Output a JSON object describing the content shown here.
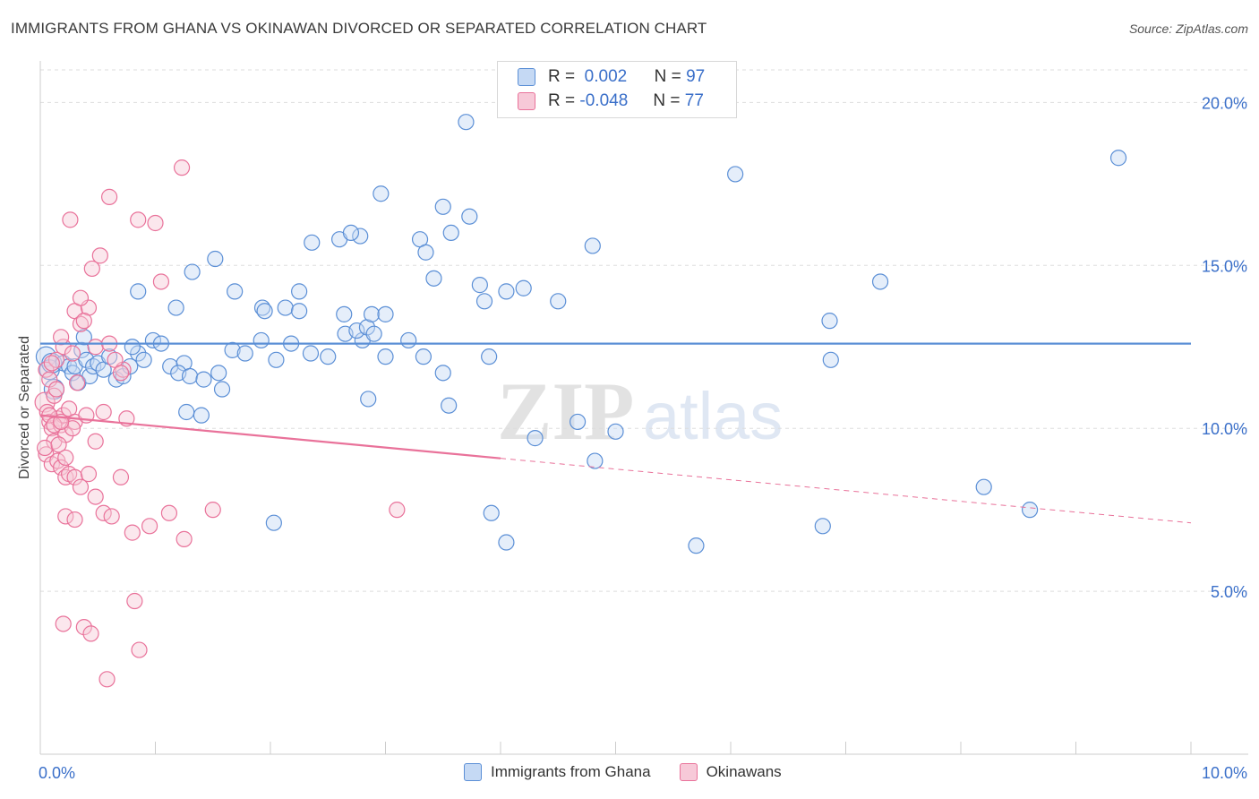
{
  "header": {
    "title": "IMMIGRANTS FROM GHANA VS OKINAWAN DIVORCED OR SEPARATED CORRELATION CHART",
    "source": "Source: ZipAtlas.com"
  },
  "watermark": {
    "zip": "ZIP",
    "atlas": "atlas"
  },
  "legend_top": {
    "rows": [
      {
        "r_label": "R =",
        "r_value": "0.002",
        "n_label": "N =",
        "n_value": "97"
      },
      {
        "r_label": "R =",
        "r_value": "-0.048",
        "n_label": "N =",
        "n_value": "77"
      }
    ]
  },
  "legend_bottom": {
    "items": [
      "Immigrants from Ghana",
      "Okinawans"
    ]
  },
  "colors": {
    "blue": "#5b8fd6",
    "blue_fill": "#c5d9f4",
    "pink": "#e9729a",
    "pink_fill": "#f7c9d8",
    "axis_text": "#3a6fc9",
    "grid": "#dddddd"
  },
  "chart_data": {
    "type": "scatter",
    "title": "IMMIGRANTS FROM GHANA VS OKINAWAN DIVORCED OR SEPARATED CORRELATION CHART",
    "xlabel": "",
    "ylabel": "Divorced or Separated",
    "xlim": [
      0,
      10
    ],
    "ylim": [
      0,
      21
    ],
    "x_tick_labels": [
      "0.0%",
      "10.0%"
    ],
    "y_ticks": [
      5,
      10,
      15,
      20
    ],
    "y_tick_labels": [
      "5.0%",
      "10.0%",
      "15.0%",
      "20.0%"
    ],
    "grid": true,
    "legend": "top-center",
    "series": [
      {
        "name": "Immigrants from Ghana",
        "r": 0.002,
        "n": 97,
        "trend": {
          "x": [
            0,
            10
          ],
          "y": [
            12.6,
            12.6
          ],
          "solid_until": 10
        },
        "points": [
          [
            0.05,
            12.2
          ],
          [
            0.08,
            11.8
          ],
          [
            0.1,
            12.0
          ],
          [
            0.12,
            11.2
          ],
          [
            0.2,
            12.0
          ],
          [
            0.25,
            11.9
          ],
          [
            0.28,
            11.7
          ],
          [
            0.33,
            11.4
          ],
          [
            0.3,
            11.9
          ],
          [
            0.36,
            12.4
          ],
          [
            0.4,
            12.1
          ],
          [
            0.43,
            11.6
          ],
          [
            0.46,
            11.9
          ],
          [
            0.5,
            12.0
          ],
          [
            0.55,
            11.8
          ],
          [
            0.6,
            12.2
          ],
          [
            0.66,
            11.5
          ],
          [
            0.72,
            11.6
          ],
          [
            0.78,
            11.9
          ],
          [
            0.85,
            12.3
          ],
          [
            0.9,
            12.1
          ],
          [
            0.98,
            12.7
          ],
          [
            1.05,
            12.6
          ],
          [
            1.13,
            11.9
          ],
          [
            1.25,
            12.0
          ],
          [
            1.2,
            11.7
          ],
          [
            1.3,
            11.6
          ],
          [
            1.42,
            11.5
          ],
          [
            1.55,
            11.7
          ],
          [
            1.67,
            12.4
          ],
          [
            1.78,
            12.3
          ],
          [
            1.92,
            12.7
          ],
          [
            2.05,
            12.1
          ],
          [
            2.18,
            12.6
          ],
          [
            2.35,
            12.3
          ],
          [
            2.5,
            12.2
          ],
          [
            2.65,
            12.9
          ],
          [
            2.8,
            12.7
          ],
          [
            3.0,
            12.2
          ],
          [
            3.2,
            12.7
          ],
          [
            0.8,
            12.5
          ],
          [
            0.38,
            12.8
          ],
          [
            0.85,
            14.2
          ],
          [
            1.18,
            13.7
          ],
          [
            1.32,
            14.8
          ],
          [
            1.52,
            15.2
          ],
          [
            1.69,
            14.2
          ],
          [
            1.93,
            13.7
          ],
          [
            2.13,
            13.7
          ],
          [
            2.25,
            14.2
          ],
          [
            2.25,
            13.6
          ],
          [
            2.36,
            15.7
          ],
          [
            2.6,
            15.8
          ],
          [
            2.64,
            13.5
          ],
          [
            2.75,
            13.0
          ],
          [
            2.78,
            15.9
          ],
          [
            2.84,
            13.1
          ],
          [
            2.88,
            13.5
          ],
          [
            2.9,
            12.9
          ],
          [
            3.0,
            13.5
          ],
          [
            3.3,
            15.8
          ],
          [
            3.35,
            15.4
          ],
          [
            3.42,
            14.6
          ],
          [
            3.5,
            16.8
          ],
          [
            3.57,
            16.0
          ],
          [
            3.73,
            16.5
          ],
          [
            3.82,
            14.4
          ],
          [
            3.86,
            13.9
          ],
          [
            4.05,
            14.2
          ],
          [
            4.2,
            14.3
          ],
          [
            4.5,
            13.9
          ],
          [
            4.8,
            15.6
          ],
          [
            6.04,
            17.8
          ],
          [
            6.86,
            13.3
          ],
          [
            7.3,
            14.5
          ],
          [
            9.37,
            18.3
          ],
          [
            3.7,
            19.4
          ],
          [
            2.96,
            17.2
          ],
          [
            2.7,
            16.0
          ],
          [
            1.95,
            13.6
          ],
          [
            1.58,
            11.2
          ],
          [
            1.27,
            10.5
          ],
          [
            1.4,
            10.4
          ],
          [
            2.85,
            10.9
          ],
          [
            3.33,
            12.2
          ],
          [
            3.5,
            11.7
          ],
          [
            3.55,
            10.7
          ],
          [
            3.9,
            12.2
          ],
          [
            4.3,
            9.7
          ],
          [
            4.67,
            10.2
          ],
          [
            4.82,
            9.0
          ],
          [
            5.0,
            9.9
          ],
          [
            6.87,
            12.1
          ],
          [
            3.92,
            7.4
          ],
          [
            4.05,
            6.5
          ],
          [
            2.03,
            7.1
          ],
          [
            5.7,
            6.4
          ],
          [
            6.8,
            7.0
          ],
          [
            8.2,
            8.2
          ],
          [
            8.6,
            7.5
          ]
        ]
      },
      {
        "name": "Okinawans",
        "r": -0.048,
        "n": 77,
        "trend": {
          "x": [
            0,
            10
          ],
          "y": [
            10.4,
            7.1
          ],
          "solid_until": 4
        },
        "points": [
          [
            0.04,
            10.8
          ],
          [
            0.06,
            10.5
          ],
          [
            0.08,
            10.2
          ],
          [
            0.1,
            10.0
          ],
          [
            0.12,
            9.6
          ],
          [
            0.15,
            10.3
          ],
          [
            0.18,
            10.1
          ],
          [
            0.2,
            10.4
          ],
          [
            0.22,
            9.8
          ],
          [
            0.25,
            10.6
          ],
          [
            0.3,
            10.2
          ],
          [
            0.05,
            11.8
          ],
          [
            0.08,
            11.5
          ],
          [
            0.12,
            11.0
          ],
          [
            0.14,
            12.1
          ],
          [
            0.2,
            12.5
          ],
          [
            0.28,
            12.3
          ],
          [
            0.18,
            12.8
          ],
          [
            0.3,
            13.6
          ],
          [
            0.35,
            13.2
          ],
          [
            0.42,
            13.7
          ],
          [
            0.38,
            13.3
          ],
          [
            0.48,
            12.5
          ],
          [
            0.35,
            14.0
          ],
          [
            0.45,
            14.9
          ],
          [
            0.52,
            15.3
          ],
          [
            0.26,
            16.4
          ],
          [
            0.6,
            17.1
          ],
          [
            0.85,
            16.4
          ],
          [
            1.0,
            16.3
          ],
          [
            1.23,
            18.0
          ],
          [
            1.05,
            14.5
          ],
          [
            0.72,
            11.8
          ],
          [
            0.65,
            12.1
          ],
          [
            0.05,
            9.2
          ],
          [
            0.1,
            8.9
          ],
          [
            0.15,
            9.0
          ],
          [
            0.18,
            8.8
          ],
          [
            0.22,
            8.5
          ],
          [
            0.25,
            8.6
          ],
          [
            0.3,
            8.5
          ],
          [
            0.35,
            8.2
          ],
          [
            0.42,
            8.6
          ],
          [
            0.48,
            7.9
          ],
          [
            0.55,
            7.4
          ],
          [
            0.62,
            7.3
          ],
          [
            0.7,
            8.5
          ],
          [
            0.8,
            6.8
          ],
          [
            0.95,
            7.0
          ],
          [
            1.12,
            7.4
          ],
          [
            1.25,
            6.6
          ],
          [
            1.5,
            7.5
          ],
          [
            0.22,
            7.3
          ],
          [
            0.3,
            7.2
          ],
          [
            0.2,
            4.0
          ],
          [
            0.38,
            3.9
          ],
          [
            0.44,
            3.7
          ],
          [
            0.82,
            4.7
          ],
          [
            0.86,
            3.2
          ],
          [
            0.58,
            2.3
          ],
          [
            3.1,
            7.5
          ],
          [
            0.75,
            10.3
          ],
          [
            0.55,
            10.5
          ],
          [
            0.48,
            9.6
          ],
          [
            0.08,
            10.4
          ],
          [
            0.12,
            10.1
          ],
          [
            0.04,
            9.4
          ],
          [
            0.16,
            9.5
          ],
          [
            0.22,
            9.1
          ],
          [
            0.14,
            11.2
          ],
          [
            0.28,
            10.0
          ],
          [
            0.4,
            10.4
          ],
          [
            0.6,
            12.6
          ],
          [
            0.7,
            11.7
          ],
          [
            0.18,
            10.2
          ],
          [
            0.1,
            12.0
          ],
          [
            0.32,
            11.4
          ]
        ]
      }
    ]
  }
}
